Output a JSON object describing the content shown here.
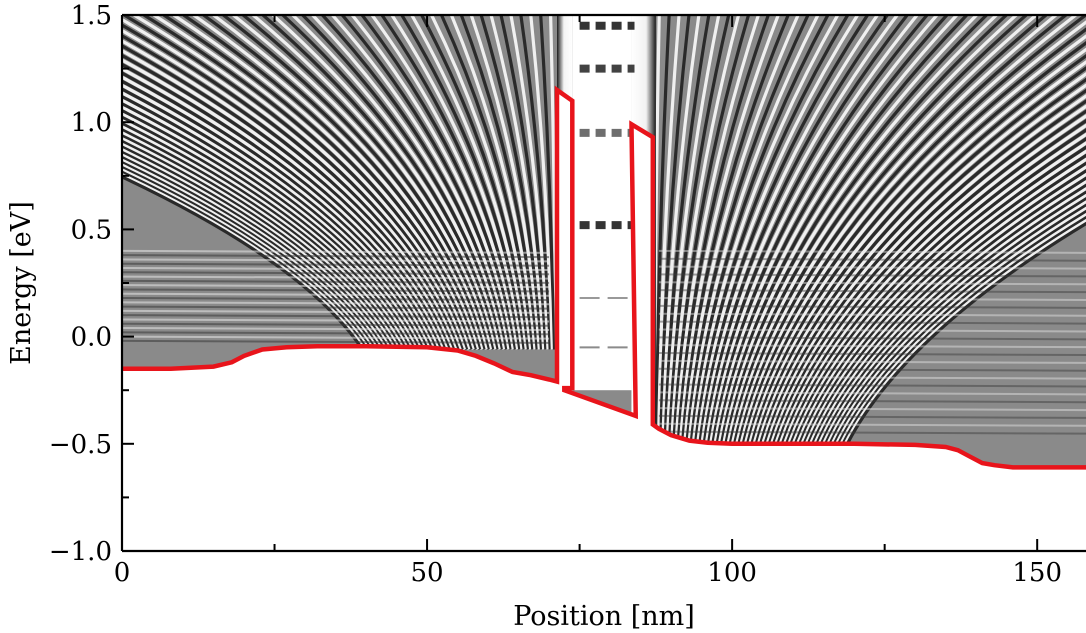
{
  "chart_data": {
    "type": "line",
    "xlabel": "Position [nm]",
    "ylabel": "Energy [eV]",
    "xlim": [
      0,
      158
    ],
    "ylim": [
      -1.0,
      1.5
    ],
    "x_ticks": [
      {
        "value": 0,
        "label": "0"
      },
      {
        "value": 50,
        "label": "50"
      },
      {
        "value": 100,
        "label": "100"
      },
      {
        "value": 150,
        "label": "150"
      }
    ],
    "y_ticks": [
      {
        "value": 1.5,
        "label": "1.5"
      },
      {
        "value": 1.0,
        "label": "1.0"
      },
      {
        "value": 0.5,
        "label": "0.5"
      },
      {
        "value": 0.0,
        "label": "0.0"
      },
      {
        "value": -0.5,
        "label": "−0.5"
      },
      {
        "value": -1.0,
        "label": "−1.0"
      }
    ],
    "x_minor_ticks": [
      25,
      75,
      125
    ],
    "y_minor_ticks": [
      1.25,
      0.75,
      0.25,
      -0.25,
      -0.75
    ],
    "background": "grayscale local density of states map",
    "series": [
      {
        "color": "#e8141b",
        "x": [
          0,
          8,
          15,
          18,
          20,
          23,
          27,
          32,
          40,
          50,
          55,
          58,
          61,
          64,
          67,
          70,
          71.3,
          71.3,
          73.8,
          73.8,
          72.5,
          72.5,
          84.2,
          84.2,
          83.5,
          83.5,
          87,
          87,
          88,
          90,
          93,
          96,
          100,
          110,
          120,
          130,
          135,
          137,
          139,
          141,
          143,
          146,
          150,
          158
        ],
        "y": [
          -0.15,
          -0.15,
          -0.14,
          -0.12,
          -0.09,
          -0.06,
          -0.05,
          -0.045,
          -0.045,
          -0.05,
          -0.065,
          -0.09,
          -0.125,
          -0.165,
          -0.18,
          -0.2,
          -0.21,
          1.15,
          1.1,
          -0.24,
          -0.24,
          -0.25,
          -0.37,
          -0.36,
          0.98,
          0.99,
          0.93,
          -0.41,
          -0.43,
          -0.46,
          -0.485,
          -0.495,
          -0.5,
          -0.5,
          -0.5,
          -0.505,
          -0.515,
          -0.53,
          -0.56,
          -0.59,
          -0.6,
          -0.61,
          -0.61,
          -0.61
        ]
      }
    ]
  }
}
